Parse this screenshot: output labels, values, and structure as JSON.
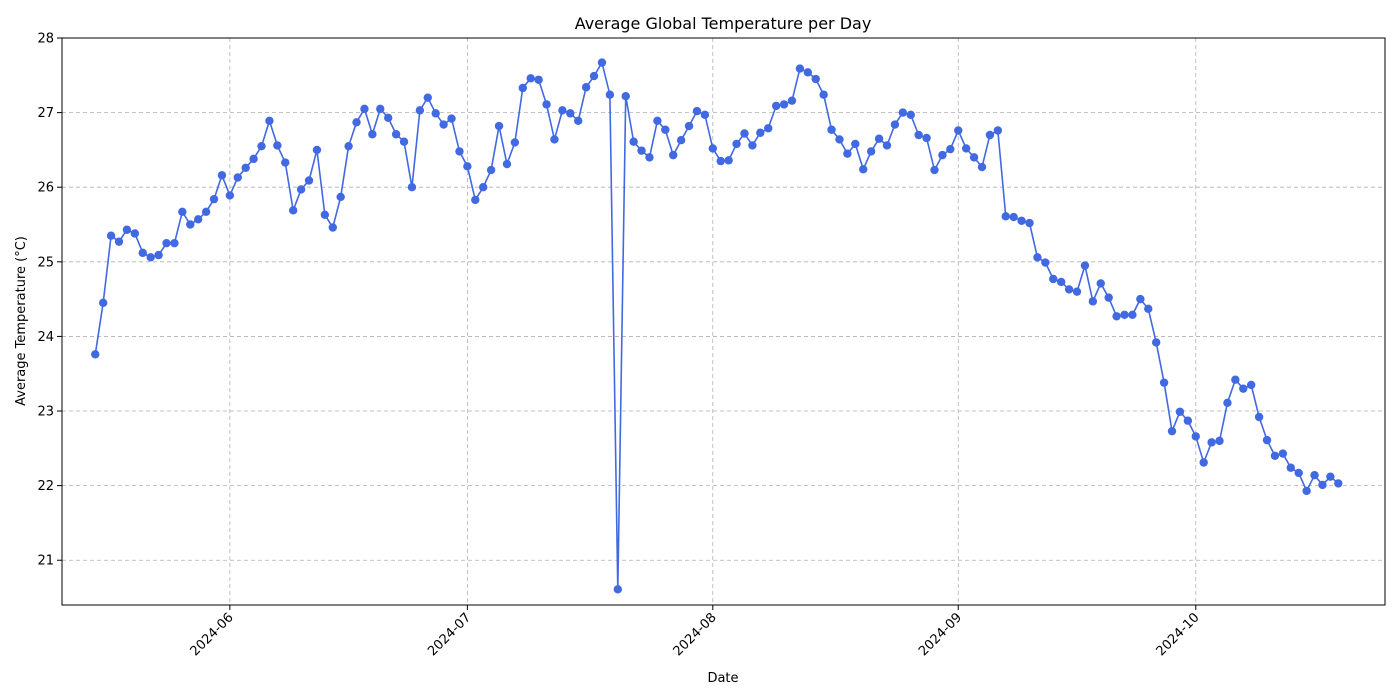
{
  "chart_data": {
    "type": "line",
    "title": "Average Global Temperature per Day",
    "xlabel": "Date",
    "ylabel": "Average Temperature (°C)",
    "x_start": "2024-05-15",
    "x_end": "2024-10-22",
    "x_ticks": [
      "2024-06-01",
      "2024-07-01",
      "2024-08-01",
      "2024-09-01",
      "2024-10-01"
    ],
    "x_tick_labels": [
      "2024-06",
      "2024-07",
      "2024-08",
      "2024-09",
      "2024-10"
    ],
    "ylim": [
      20.4,
      28.0
    ],
    "y_ticks": [
      21,
      22,
      23,
      24,
      25,
      26,
      27,
      28
    ],
    "grid": true,
    "grid_style": "dashed",
    "line_color": "#4169e1",
    "marker": "circle",
    "series": [
      {
        "values": [
          23.76,
          24.45,
          25.35,
          25.27,
          25.43,
          25.38,
          25.12,
          25.06,
          25.09,
          25.25,
          25.25,
          25.67,
          25.5,
          25.57,
          25.67,
          25.84,
          26.16,
          25.89,
          26.13,
          26.26,
          26.38,
          26.55,
          26.89,
          26.56,
          26.33,
          25.69,
          25.97,
          26.09,
          26.5,
          25.63,
          25.46,
          25.87,
          26.55,
          26.87,
          27.05,
          26.71,
          27.05,
          26.93,
          26.71,
          26.61,
          26.0,
          27.03,
          27.2,
          26.99,
          26.84,
          26.92,
          26.48,
          26.28,
          25.83,
          26.0,
          26.23,
          26.82,
          26.31,
          26.6,
          27.33,
          27.46,
          27.44,
          27.11,
          26.64,
          27.03,
          26.99,
          26.89,
          27.34,
          27.49,
          27.67,
          27.24,
          20.61,
          27.22,
          26.61,
          26.49,
          26.4,
          26.89,
          26.77,
          26.43,
          26.63,
          26.82,
          27.02,
          26.97,
          26.52,
          26.35,
          26.36,
          26.58,
          26.72,
          26.56,
          26.73,
          26.79,
          27.09,
          27.11,
          27.16,
          27.59,
          27.54,
          27.45,
          27.24,
          26.77,
          26.64,
          26.45,
          26.58,
          26.24,
          26.48,
          26.65,
          26.56,
          26.84,
          27.0,
          26.97,
          26.7,
          26.66,
          26.23,
          26.43,
          26.51,
          26.76,
          26.52,
          26.4,
          26.27,
          26.7,
          26.76,
          25.61,
          25.6,
          25.55,
          25.52,
          25.06,
          24.99,
          24.77,
          24.73,
          24.63,
          24.6,
          24.95,
          24.47,
          24.71,
          24.52,
          24.27,
          24.29,
          24.29,
          24.5,
          24.37,
          23.92,
          23.38,
          22.73,
          22.99,
          22.87,
          22.66,
          22.31,
          22.58,
          22.6,
          23.11,
          23.42,
          23.3,
          23.35,
          22.92,
          22.61,
          22.4,
          22.43,
          22.24,
          22.17,
          21.93,
          22.14,
          22.01,
          22.12,
          22.03
        ]
      }
    ]
  }
}
